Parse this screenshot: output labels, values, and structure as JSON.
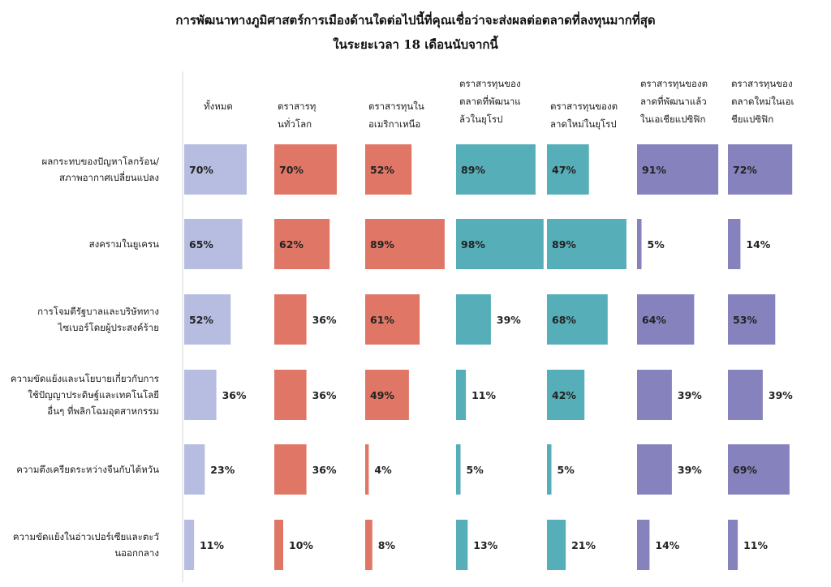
{
  "chart_data": {
    "type": "table",
    "title": "การพัฒนาทางภูมิศาสตร์การเมืองด้านใดต่อไปนี้ที่คุณเชื่อว่าจะส่งผลต่อตลาดที่ลงทุนมากที่สุด",
    "subtitle": "ในระยะเวลา 18 เดือนนับจากนี้",
    "columns": [
      {
        "lines": [
          "ทั้งหมด"
        ],
        "color": "#b6bde0"
      },
      {
        "lines": [
          "ตราสารทุ",
          "นทั่วโลก"
        ],
        "color": "#e07766"
      },
      {
        "lines": [
          "ตราสารทุนใน",
          "อเมริกาเหนือ"
        ],
        "color": "#e07766"
      },
      {
        "lines": [
          "ตราสารทุนของ",
          "ตลาดที่พัฒนาแ",
          "ล้วในยุโรป"
        ],
        "color": "#56aeb8"
      },
      {
        "lines": [
          "ตราสารทุนของต",
          "ลาดใหม่ในยุโรป"
        ],
        "color": "#56aeb8"
      },
      {
        "lines": [
          "ตราสารทุนของต",
          "ลาดที่พัฒนาแล้ว",
          "ในเอเชียแปซิฟิก"
        ],
        "color": "#8582bd"
      },
      {
        "lines": [
          "ตราสารทุนของ",
          "ตลาดใหม่ในเอเ",
          "ชียแปซิฟิก"
        ],
        "color": "#8582bd"
      }
    ],
    "rows": [
      {
        "lines": [
          "ผลกระทบของปัญหาโลกร้อน/",
          "สภาพอากาศเปลี่ยนแปลง"
        ],
        "values": [
          70,
          70,
          52,
          89,
          47,
          91,
          72
        ]
      },
      {
        "lines": [
          "สงครามในยูเครน"
        ],
        "values": [
          65,
          62,
          89,
          98,
          89,
          5,
          14
        ]
      },
      {
        "lines": [
          "การโจมตีรัฐบาลและบริษัททาง",
          "ไซเบอร์โดยผู้ประสงค์ร้าย"
        ],
        "values": [
          52,
          36,
          61,
          39,
          68,
          64,
          53
        ]
      },
      {
        "lines": [
          "ความขัดแย้งและนโยบายเกี่ยวกับการ",
          "ใช้ปัญญาประดิษฐ์และเทคโนโลยี",
          "อื่นๆ ที่พลิกโฉมอุตสาหกรรม"
        ],
        "values": [
          36,
          36,
          49,
          11,
          42,
          39,
          39
        ]
      },
      {
        "lines": [
          "ความตึงเครียดระหว่างจีนกับไต้หวัน"
        ],
        "values": [
          23,
          36,
          4,
          5,
          5,
          39,
          69
        ]
      },
      {
        "lines": [
          "ความขัดแย้งในอ่าวเปอร์เซียและตะวั",
          "นออกกลาง"
        ],
        "values": [
          11,
          10,
          8,
          13,
          21,
          14,
          11
        ]
      }
    ],
    "unit": "%",
    "value_range": [
      0,
      100
    ]
  }
}
